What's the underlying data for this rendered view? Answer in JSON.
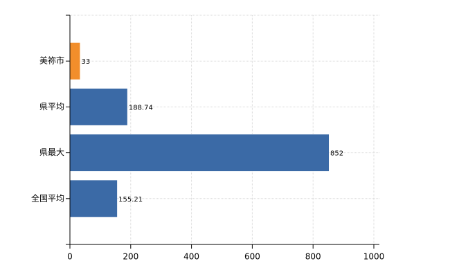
{
  "chart_data": {
    "type": "barh",
    "categories": [
      "美祢市",
      "県平均",
      "県最大",
      "全国平均"
    ],
    "values": [
      33,
      188.74,
      852,
      155.21
    ],
    "colors": [
      "#f28e2b",
      "#3b6aa6",
      "#3b6aa6",
      "#3b6aa6"
    ],
    "xlim": [
      0,
      1000
    ],
    "xticks": [
      0,
      200,
      400,
      600,
      800,
      1000
    ],
    "grid": true
  }
}
